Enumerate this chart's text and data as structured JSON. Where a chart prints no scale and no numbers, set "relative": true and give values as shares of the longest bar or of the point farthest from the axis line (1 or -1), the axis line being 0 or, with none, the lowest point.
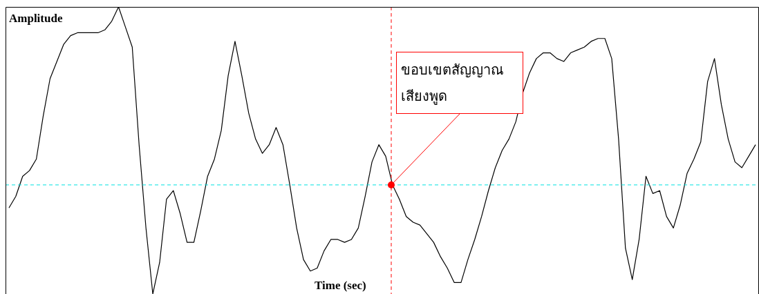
{
  "chart_data": {
    "type": "line",
    "relative": true,
    "xlabel": "Time (sec)",
    "ylabel": "Amplitude",
    "categories": [
      null,
      null,
      null,
      null,
      null,
      null,
      null,
      null,
      null,
      null,
      null,
      null,
      null,
      null,
      null,
      null,
      null,
      null,
      null,
      null,
      null,
      null,
      null,
      null,
      null,
      null,
      null,
      null,
      null,
      null,
      null,
      null,
      null,
      null,
      null,
      null,
      null,
      null,
      null,
      null,
      null,
      null,
      null,
      null,
      null,
      null,
      null,
      null,
      null,
      null,
      null,
      null,
      null,
      null,
      null,
      null,
      null,
      null,
      null,
      null,
      null,
      null,
      null,
      null,
      null,
      null,
      null,
      null,
      null,
      null,
      null,
      null,
      null,
      null,
      null,
      null,
      null,
      null,
      null,
      null,
      null,
      null,
      null,
      null,
      null,
      null,
      null,
      null,
      null,
      null,
      null,
      null,
      null,
      null,
      null,
      null,
      null,
      null,
      null,
      null,
      null,
      null,
      null,
      null,
      null,
      null,
      null,
      null,
      null,
      null
    ],
    "series": [
      {
        "color": "#000000",
        "values": [
          0.3,
          0.34,
          0.41,
          0.43,
          0.47,
          0.62,
          0.75,
          0.81,
          0.87,
          0.9,
          0.91,
          0.91,
          0.91,
          0.91,
          0.92,
          0.95,
          1,
          0.93,
          0.86,
          0.52,
          0.23,
          0,
          0.11,
          0.33,
          0.36,
          0.28,
          0.18,
          0.18,
          0.29,
          0.41,
          0.47,
          0.57,
          0.76,
          0.88,
          0.76,
          0.63,
          0.54,
          0.49,
          0.52,
          0.58,
          0.52,
          0.38,
          0.23,
          0.12,
          0.08,
          0.09,
          0.15,
          0.19,
          0.19,
          0.18,
          0.19,
          0.23,
          0.34,
          0.46,
          0.52,
          0.48,
          0.38,
          0.33,
          0.27,
          0.25,
          0.24,
          0.21,
          0.18,
          0.13,
          0.09,
          0.04,
          0.04,
          0.12,
          0.19,
          0.27,
          0.36,
          0.44,
          0.5,
          0.54,
          0.6,
          0.7,
          0.77,
          0.82,
          0.84,
          0.84,
          0.82,
          0.81,
          0.84,
          0.85,
          0.86,
          0.88,
          0.89,
          0.89,
          0.82,
          0.54,
          0.16,
          0.05,
          0.19,
          0.41,
          0.35,
          0.36,
          0.27,
          0.23,
          0.31,
          0.42,
          0.47,
          0.53,
          0.74,
          0.82,
          0.66,
          0.54,
          0.46,
          0.44,
          0.48,
          0.52
        ]
      }
    ],
    "ref_lines": [
      {
        "axis": "y",
        "value": 0.38,
        "color": "#00e0e0",
        "line_style": "dashed"
      }
    ],
    "annotations": [
      "ขอบเขตสัญญาณ\nเสียงพูด"
    ],
    "grid": false,
    "legend": false,
    "marker": "none",
    "line_style": "solid"
  }
}
